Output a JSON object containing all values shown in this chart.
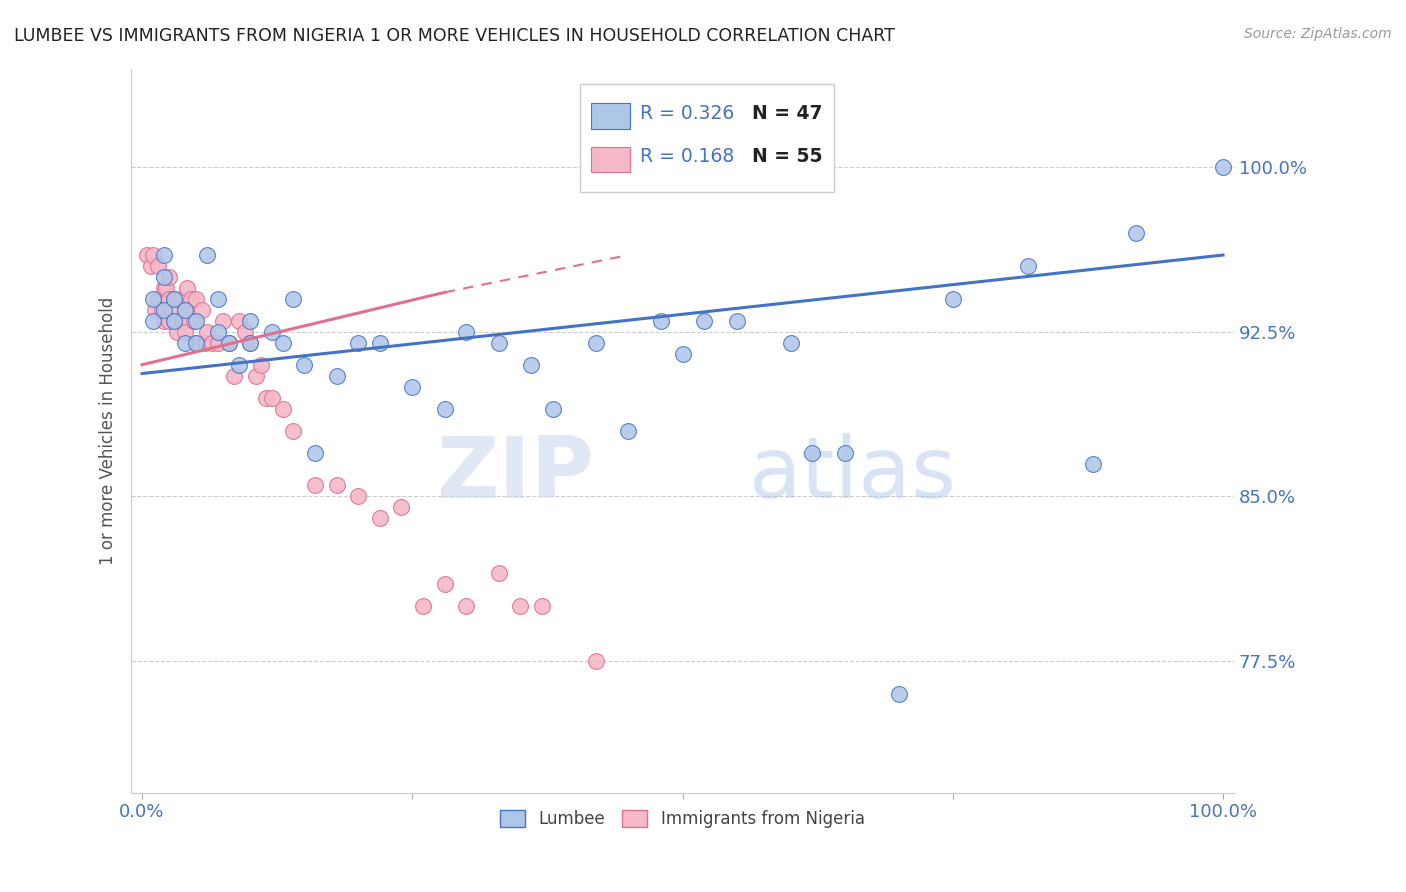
{
  "title": "LUMBEE VS IMMIGRANTS FROM NIGERIA 1 OR MORE VEHICLES IN HOUSEHOLD CORRELATION CHART",
  "source": "Source: ZipAtlas.com",
  "ylabel": "1 or more Vehicles in Household",
  "yticks": [
    0.775,
    0.85,
    0.925,
    1.0
  ],
  "ytick_labels": [
    "77.5%",
    "85.0%",
    "92.5%",
    "100.0%"
  ],
  "xlim": [
    -0.01,
    1.01
  ],
  "ylim": [
    0.715,
    1.045
  ],
  "blue_color": "#aec6e8",
  "pink_color": "#f4b8c8",
  "blue_line_color": "#4472c4",
  "pink_line_color": "#e07090",
  "text_blue": "#4472c4",
  "watermark_zip": "ZIP",
  "watermark_atlas": "atlas",
  "blue_scatter_x": [
    0.01,
    0.01,
    0.02,
    0.02,
    0.02,
    0.03,
    0.03,
    0.04,
    0.04,
    0.05,
    0.05,
    0.06,
    0.07,
    0.07,
    0.08,
    0.09,
    0.1,
    0.1,
    0.12,
    0.13,
    0.14,
    0.15,
    0.16,
    0.18,
    0.2,
    0.22,
    0.25,
    0.28,
    0.3,
    0.33,
    0.36,
    0.38,
    0.42,
    0.45,
    0.48,
    0.5,
    0.52,
    0.55,
    0.6,
    0.62,
    0.65,
    0.7,
    0.75,
    0.82,
    0.88,
    0.92,
    1.0
  ],
  "blue_scatter_y": [
    0.94,
    0.93,
    0.96,
    0.95,
    0.935,
    0.94,
    0.93,
    0.935,
    0.92,
    0.93,
    0.92,
    0.96,
    0.94,
    0.925,
    0.92,
    0.91,
    0.92,
    0.93,
    0.925,
    0.92,
    0.94,
    0.91,
    0.87,
    0.905,
    0.92,
    0.92,
    0.9,
    0.89,
    0.925,
    0.92,
    0.91,
    0.89,
    0.92,
    0.88,
    0.93,
    0.915,
    0.93,
    0.93,
    0.92,
    0.87,
    0.87,
    0.76,
    0.94,
    0.955,
    0.865,
    0.97,
    1.0
  ],
  "pink_scatter_x": [
    0.005,
    0.008,
    0.01,
    0.012,
    0.015,
    0.015,
    0.018,
    0.02,
    0.02,
    0.022,
    0.025,
    0.025,
    0.025,
    0.028,
    0.03,
    0.03,
    0.032,
    0.035,
    0.038,
    0.04,
    0.04,
    0.042,
    0.045,
    0.048,
    0.05,
    0.05,
    0.055,
    0.058,
    0.06,
    0.065,
    0.07,
    0.075,
    0.08,
    0.085,
    0.09,
    0.095,
    0.1,
    0.105,
    0.11,
    0.115,
    0.12,
    0.13,
    0.14,
    0.16,
    0.18,
    0.2,
    0.22,
    0.24,
    0.26,
    0.28,
    0.3,
    0.33,
    0.35,
    0.37,
    0.42
  ],
  "pink_scatter_y": [
    0.96,
    0.955,
    0.96,
    0.935,
    0.955,
    0.94,
    0.935,
    0.945,
    0.93,
    0.945,
    0.95,
    0.94,
    0.93,
    0.935,
    0.94,
    0.93,
    0.925,
    0.94,
    0.93,
    0.935,
    0.925,
    0.945,
    0.94,
    0.93,
    0.94,
    0.92,
    0.935,
    0.92,
    0.925,
    0.92,
    0.92,
    0.93,
    0.92,
    0.905,
    0.93,
    0.925,
    0.92,
    0.905,
    0.91,
    0.895,
    0.895,
    0.89,
    0.88,
    0.855,
    0.855,
    0.85,
    0.84,
    0.845,
    0.8,
    0.81,
    0.8,
    0.815,
    0.8,
    0.8,
    0.775
  ],
  "blue_trend_x": [
    0.0,
    1.0
  ],
  "blue_trend_y": [
    0.906,
    0.96
  ],
  "pink_trend_x": [
    0.0,
    0.42
  ],
  "pink_trend_y": [
    0.91,
    0.96
  ]
}
